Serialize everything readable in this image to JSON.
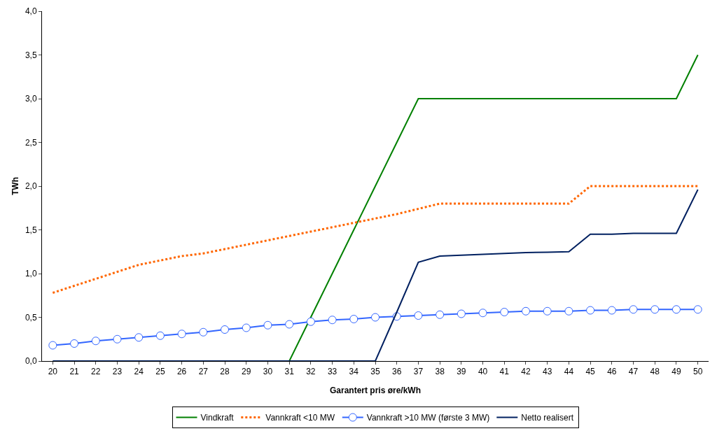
{
  "chart_data": {
    "type": "line",
    "xlabel": "Garantert pris øre/kWh",
    "ylabel": "TWh",
    "categories": [
      "20",
      "21",
      "22",
      "23",
      "24",
      "25",
      "26",
      "27",
      "28",
      "29",
      "30",
      "31",
      "32",
      "33",
      "34",
      "35",
      "36",
      "37",
      "38",
      "39",
      "40",
      "41",
      "42",
      "43",
      "44",
      "45",
      "46",
      "47",
      "48",
      "49",
      "50"
    ],
    "ylim": [
      0,
      4
    ],
    "yticks": [
      {
        "value": 0,
        "label": "0,0"
      },
      {
        "value": 0.5,
        "label": "0,5"
      },
      {
        "value": 1,
        "label": "1,0"
      },
      {
        "value": 1.5,
        "label": "1,5"
      },
      {
        "value": 2,
        "label": "2,0"
      },
      {
        "value": 2.5,
        "label": "2,5"
      },
      {
        "value": 3,
        "label": "3,0"
      },
      {
        "value": 3.5,
        "label": "3,5"
      },
      {
        "value": 4,
        "label": "4,0"
      }
    ],
    "grid": false,
    "legend": "bottom",
    "series": [
      {
        "name": "Vindkraft",
        "color": "#008000",
        "line_style": "solid",
        "marker": "none",
        "values": [
          null,
          null,
          null,
          null,
          null,
          null,
          null,
          null,
          null,
          null,
          null,
          0,
          0.5,
          1.0,
          1.5,
          2.0,
          2.5,
          3.0,
          3.0,
          3.0,
          3.0,
          3.0,
          3.0,
          3.0,
          3.0,
          3.0,
          3.0,
          3.0,
          3.0,
          3.0,
          3.5
        ]
      },
      {
        "name": "Vannkraft <10 MW",
        "color": "#ff6600",
        "line_style": "dotted",
        "marker": "none",
        "values": [
          0.78,
          0.86,
          0.94,
          1.02,
          1.1,
          1.15,
          1.2,
          1.23,
          1.28,
          1.33,
          1.38,
          1.43,
          1.48,
          1.53,
          1.58,
          1.63,
          1.68,
          1.74,
          1.8,
          1.8,
          1.8,
          1.8,
          1.8,
          1.8,
          1.8,
          2.0,
          2.0,
          2.0,
          2.0,
          2.0,
          2.0
        ]
      },
      {
        "name": "Vannkraft >10 MW (første 3 MW)",
        "color": "#3366ff",
        "line_style": "solid",
        "marker": "circle",
        "values": [
          0.18,
          0.2,
          0.23,
          0.25,
          0.27,
          0.29,
          0.31,
          0.33,
          0.36,
          0.38,
          0.41,
          0.42,
          0.45,
          0.47,
          0.48,
          0.5,
          0.51,
          0.52,
          0.53,
          0.54,
          0.55,
          0.56,
          0.57,
          0.57,
          0.57,
          0.58,
          0.58,
          0.59,
          0.59,
          0.59,
          0.59
        ]
      },
      {
        "name": "Netto realisert",
        "color": "#002060",
        "line_style": "solid",
        "marker": "none",
        "values": [
          0,
          0,
          0,
          0,
          0,
          0,
          0,
          0,
          0,
          0,
          0,
          0,
          0,
          0,
          0,
          0,
          0.56,
          1.13,
          1.2,
          1.21,
          1.22,
          1.23,
          1.24,
          1.245,
          1.25,
          1.45,
          1.45,
          1.46,
          1.46,
          1.46,
          1.96
        ]
      }
    ]
  }
}
